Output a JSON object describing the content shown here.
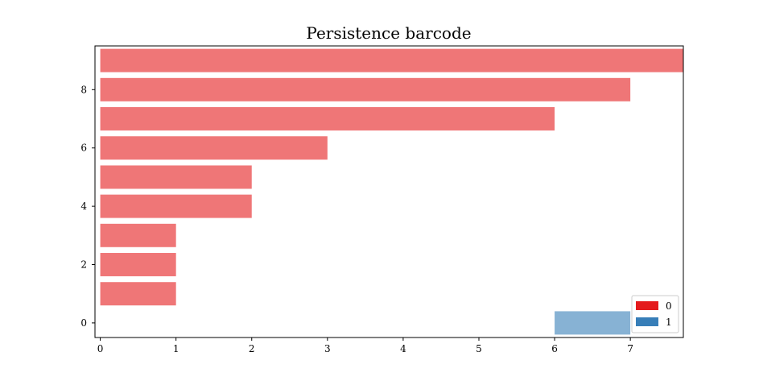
{
  "chart_data": {
    "type": "bar",
    "orientation": "horizontal",
    "title": "Persistence barcode",
    "xlabel": "",
    "ylabel": "",
    "xlim": [
      -0.07,
      7.7
    ],
    "ylim": [
      -0.5,
      9.5
    ],
    "xticks": [
      0,
      1,
      2,
      3,
      4,
      5,
      6,
      7
    ],
    "yticks": [
      0,
      2,
      4,
      6,
      8
    ],
    "grid": false,
    "legend_position": "lower-right",
    "series": [
      {
        "name": "0",
        "color": "#e41a1c",
        "bars": [
          {
            "y": 1,
            "birth": 0,
            "death": 1
          },
          {
            "y": 2,
            "birth": 0,
            "death": 1
          },
          {
            "y": 3,
            "birth": 0,
            "death": 1
          },
          {
            "y": 4,
            "birth": 0,
            "death": 2
          },
          {
            "y": 5,
            "birth": 0,
            "death": 2
          },
          {
            "y": 6,
            "birth": 0,
            "death": 3
          },
          {
            "y": 7,
            "birth": 0,
            "death": 6
          },
          {
            "y": 8,
            "birth": 0,
            "death": 7
          },
          {
            "y": 9,
            "birth": 0,
            "death": 7.7
          }
        ]
      },
      {
        "name": "1",
        "color": "#377eb8",
        "bars": [
          {
            "y": 0,
            "birth": 6,
            "death": 7
          }
        ]
      }
    ]
  }
}
